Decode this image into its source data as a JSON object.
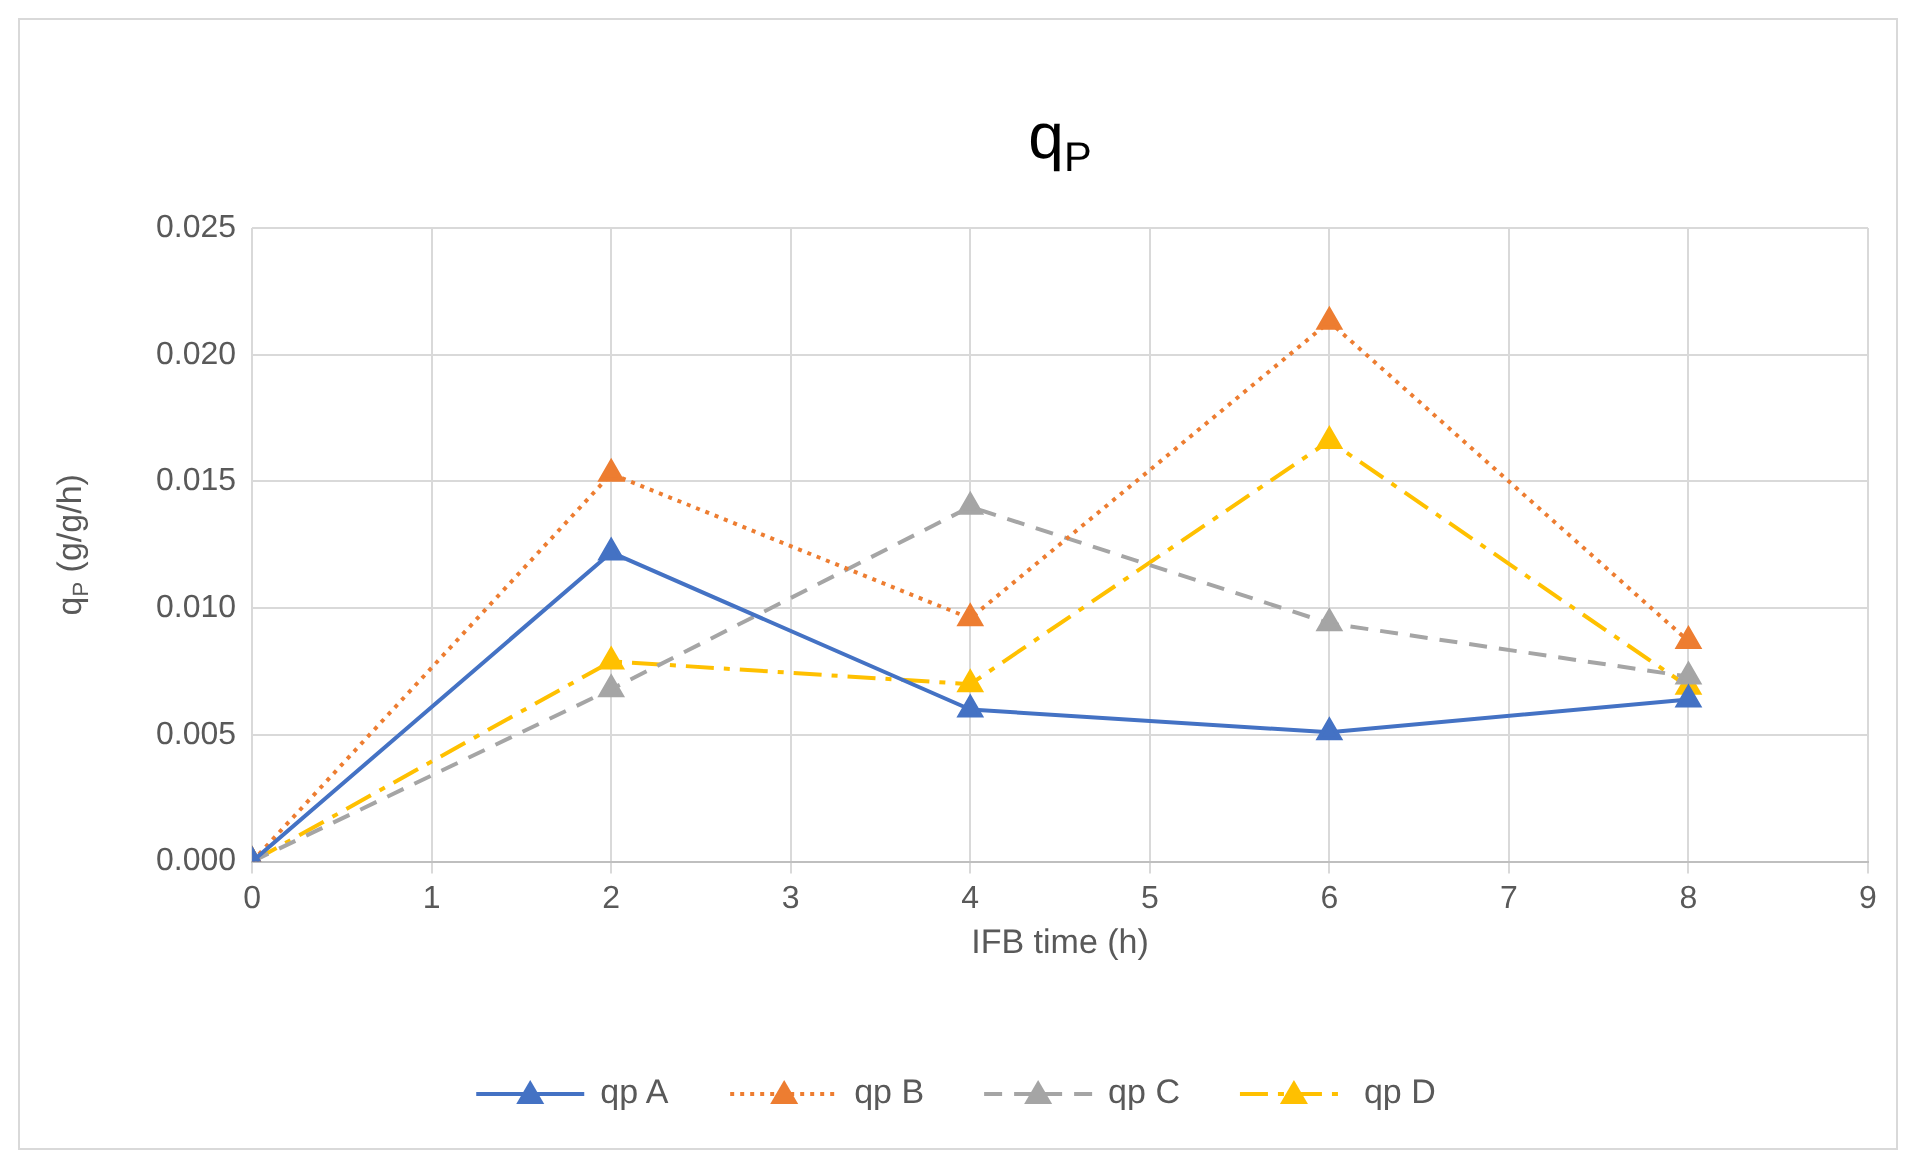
{
  "chart_data": {
    "type": "line",
    "title": "q$_{P}$",
    "xlabel": "IFB time (h)",
    "ylabel": "q$_{P}$ (g/g/h)",
    "x": [
      0,
      2,
      4,
      6,
      8
    ],
    "series": [
      {
        "name": "qp A",
        "color": "#4472c4",
        "line_style": "solid",
        "values": [
          0,
          0.0122,
          0.006,
          0.0051,
          0.0064
        ]
      },
      {
        "name": "qp B",
        "color": "#ed7d31",
        "line_style": "dotted",
        "values": [
          0,
          0.0153,
          0.0096,
          0.0213,
          0.0087
        ]
      },
      {
        "name": "qp C",
        "color": "#a5a5a5",
        "line_style": "dashed",
        "values": [
          0,
          0.0068,
          0.014,
          0.0094,
          0.0073
        ]
      },
      {
        "name": "qp D",
        "color": "#ffc000",
        "line_style": "dashdot",
        "values": [
          0,
          0.0079,
          0.007,
          0.0166,
          0.0069
        ]
      }
    ],
    "xlim": [
      0,
      9
    ],
    "xticks": [
      0,
      1,
      2,
      3,
      4,
      5,
      6,
      7,
      8,
      9
    ],
    "ylim": [
      0,
      0.025
    ],
    "yticks": [
      {
        "value": 0,
        "label": "0.000"
      },
      {
        "value": 0.005,
        "label": "0.005"
      },
      {
        "value": 0.01,
        "label": "0.010"
      },
      {
        "value": 0.015,
        "label": "0.015"
      },
      {
        "value": 0.02,
        "label": "0.020"
      },
      {
        "value": 0.025,
        "label": "0.025"
      }
    ],
    "grid": true,
    "legend": "bottom",
    "marker": "triangle"
  }
}
